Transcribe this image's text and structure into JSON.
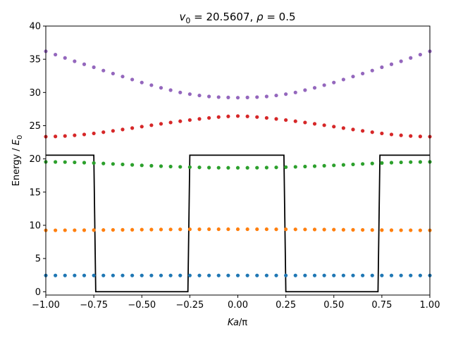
{
  "chart_data": {
    "type": "scatter",
    "title": {
      "v_symbol": "v",
      "v_sub": "0",
      "v_value": " = 20.5607, ",
      "rho_symbol": "ρ",
      "rho_value": " = 0.5"
    },
    "xlabel": {
      "sym1": "K",
      "sym2": "a",
      "rest": "/π"
    },
    "ylabel": {
      "prefix": "Energy / ",
      "sym": "E",
      "sub": "0"
    },
    "xlim": [
      -1.0,
      1.0
    ],
    "ylim": [
      -0.5,
      40
    ],
    "xticks": [
      -1.0,
      -0.75,
      -0.5,
      -0.25,
      0.0,
      0.25,
      0.5,
      0.75,
      1.0
    ],
    "xtick_labels": [
      "−1.00",
      "−0.75",
      "−0.50",
      "−0.25",
      "0.00",
      "0.25",
      "0.50",
      "0.75",
      "1.00"
    ],
    "yticks": [
      0,
      5,
      10,
      15,
      20,
      25,
      30,
      35,
      40
    ],
    "ytick_labels": [
      "0",
      "5",
      "10",
      "15",
      "20",
      "25",
      "30",
      "35",
      "40"
    ],
    "grid": false,
    "legend": "none",
    "x": [
      -1.0,
      -0.95,
      -0.9,
      -0.85,
      -0.8,
      -0.75,
      -0.7,
      -0.65,
      -0.6,
      -0.55,
      -0.5,
      -0.45,
      -0.4,
      -0.35,
      -0.3,
      -0.25,
      -0.2,
      -0.15,
      -0.1,
      -0.05,
      0.0,
      0.05,
      0.1,
      0.15,
      0.2,
      0.25,
      0.3,
      0.35,
      0.4,
      0.45,
      0.5,
      0.55,
      0.6,
      0.65,
      0.7,
      0.75,
      0.8,
      0.85,
      0.9,
      0.95,
      1.0
    ],
    "series": [
      {
        "color": "#1f77b4",
        "values": [
          2.45,
          2.45,
          2.45,
          2.45,
          2.45,
          2.45,
          2.45,
          2.45,
          2.45,
          2.45,
          2.45,
          2.45,
          2.45,
          2.45,
          2.45,
          2.45,
          2.45,
          2.45,
          2.45,
          2.45,
          2.45,
          2.45,
          2.45,
          2.45,
          2.45,
          2.45,
          2.45,
          2.45,
          2.45,
          2.45,
          2.45,
          2.45,
          2.45,
          2.45,
          2.45,
          2.45,
          2.45,
          2.45,
          2.45,
          2.45,
          2.45
        ]
      },
      {
        "color": "#ff7f0e",
        "values": [
          9.25,
          9.25,
          9.26,
          9.26,
          9.27,
          9.28,
          9.29,
          9.31,
          9.32,
          9.33,
          9.35,
          9.36,
          9.37,
          9.38,
          9.39,
          9.4,
          9.4,
          9.41,
          9.41,
          9.41,
          9.41,
          9.41,
          9.41,
          9.41,
          9.4,
          9.4,
          9.39,
          9.38,
          9.37,
          9.36,
          9.35,
          9.33,
          9.32,
          9.31,
          9.29,
          9.28,
          9.27,
          9.26,
          9.26,
          9.25,
          9.25
        ]
      },
      {
        "color": "#2ca02c",
        "values": [
          19.55,
          19.54,
          19.52,
          19.48,
          19.43,
          19.38,
          19.31,
          19.24,
          19.17,
          19.1,
          19.03,
          18.97,
          18.9,
          18.85,
          18.8,
          18.76,
          18.72,
          18.69,
          18.67,
          18.66,
          18.66,
          18.66,
          18.67,
          18.69,
          18.72,
          18.76,
          18.8,
          18.85,
          18.9,
          18.97,
          19.03,
          19.1,
          19.17,
          19.24,
          19.31,
          19.38,
          19.43,
          19.48,
          19.52,
          19.54,
          19.55
        ]
      },
      {
        "color": "#d62728",
        "values": [
          23.35,
          23.38,
          23.45,
          23.55,
          23.68,
          23.84,
          24.02,
          24.22,
          24.43,
          24.64,
          24.86,
          25.07,
          25.28,
          25.48,
          25.67,
          25.85,
          26.02,
          26.17,
          26.3,
          26.4,
          26.45,
          26.4,
          26.3,
          26.17,
          26.02,
          25.85,
          25.67,
          25.48,
          25.28,
          25.07,
          24.86,
          24.64,
          24.43,
          24.22,
          24.02,
          23.84,
          23.68,
          23.55,
          23.45,
          23.38,
          23.35
        ]
      },
      {
        "color": "#9467bd",
        "values": [
          36.2,
          35.7,
          35.2,
          34.7,
          34.25,
          33.8,
          33.3,
          32.85,
          32.4,
          31.95,
          31.5,
          31.1,
          30.7,
          30.35,
          30.0,
          29.75,
          29.55,
          29.4,
          29.3,
          29.25,
          29.22,
          29.25,
          29.3,
          29.4,
          29.55,
          29.75,
          30.0,
          30.35,
          30.7,
          31.1,
          31.5,
          31.95,
          32.4,
          32.85,
          33.3,
          33.8,
          34.25,
          34.7,
          35.2,
          35.7,
          36.2
        ]
      }
    ],
    "potential": {
      "color": "#000000",
      "x": [
        -1.0,
        -0.75,
        -0.74,
        -0.26,
        -0.25,
        0.24,
        0.25,
        0.73,
        0.74,
        1.0
      ],
      "y": [
        20.56,
        20.56,
        0.0,
        0.0,
        20.56,
        20.56,
        0.0,
        0.0,
        20.56,
        20.56
      ]
    }
  }
}
